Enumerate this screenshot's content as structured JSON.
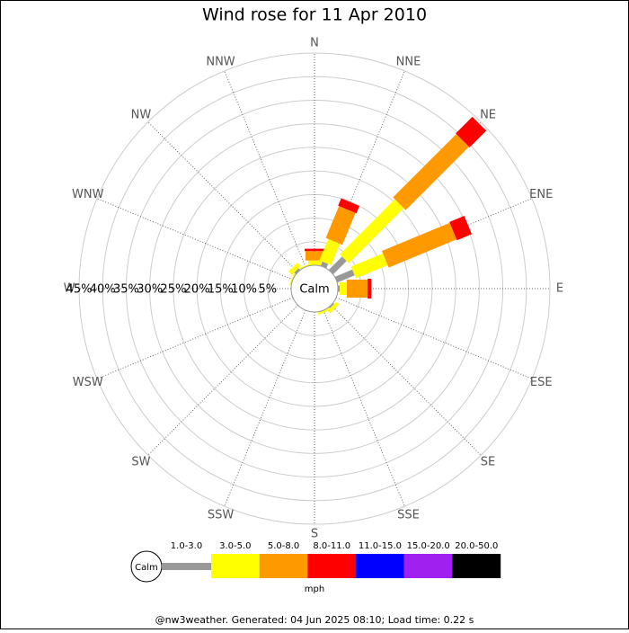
{
  "chart_data": {
    "type": "windrose",
    "title": "Wind rose for 11 Apr 2010",
    "directions": [
      "N",
      "NNE",
      "NE",
      "ENE",
      "E",
      "ESE",
      "SE",
      "SSE",
      "S",
      "SSW",
      "SW",
      "WSW",
      "W",
      "WNW",
      "NW",
      "NNW"
    ],
    "calm_label": "Calm",
    "unit": "mph",
    "rlim": [
      0,
      45
    ],
    "rticks": [
      {
        "value": 5,
        "label": "5%"
      },
      {
        "value": 10,
        "label": "10%"
      },
      {
        "value": 15,
        "label": "15%"
      },
      {
        "value": 20,
        "label": "20%"
      },
      {
        "value": 25,
        "label": "25%"
      },
      {
        "value": 30,
        "label": "30%"
      },
      {
        "value": 35,
        "label": "35%"
      },
      {
        "value": 40,
        "label": "40%"
      },
      {
        "value": 45,
        "label": "45%"
      }
    ],
    "series": [
      {
        "name": "1.0-3.0",
        "color": "#999999",
        "values": [
          0,
          1,
          4,
          4,
          0.4,
          0,
          0.3,
          0,
          0,
          0,
          0,
          0,
          0,
          0,
          0.5,
          0
        ]
      },
      {
        "name": "3.0-5.0",
        "color": "#ffff00",
        "values": [
          1,
          4.9,
          16.5,
          7.3,
          1.5,
          0,
          0.8,
          0.5,
          0,
          0,
          0,
          0,
          0,
          0.3,
          1,
          0.3
        ]
      },
      {
        "name": "5.0-8.0",
        "color": "#ff9900",
        "values": [
          2,
          7.3,
          19,
          15.6,
          4.4,
          0,
          0,
          0,
          0,
          0,
          0,
          0,
          0,
          0,
          0,
          0
        ]
      },
      {
        "name": "8.0-11.0",
        "color": "#ff0000",
        "values": [
          0.5,
          1.7,
          5,
          3.4,
          0.8,
          0,
          0,
          0,
          0,
          0,
          0,
          0,
          0,
          0,
          0,
          0
        ]
      },
      {
        "name": "11.0-15.0",
        "color": "#0000ff",
        "values": [
          0,
          0,
          0,
          0,
          0,
          0,
          0,
          0,
          0,
          0,
          0,
          0,
          0,
          0,
          0,
          0
        ]
      },
      {
        "name": "15.0-20.0",
        "color": "#a020f0",
        "values": [
          0,
          0,
          0,
          0,
          0,
          0,
          0,
          0,
          0,
          0,
          0,
          0,
          0,
          0,
          0,
          0
        ]
      },
      {
        "name": "20.0-50.0",
        "color": "#000000",
        "values": [
          0,
          0,
          0,
          0,
          0,
          0,
          0,
          0,
          0,
          0,
          0,
          0,
          0,
          0,
          0,
          0
        ]
      }
    ],
    "footer": "@nw3weather. Generated: 04 Jun 2025 08:10; Load time: 0.22 s"
  }
}
